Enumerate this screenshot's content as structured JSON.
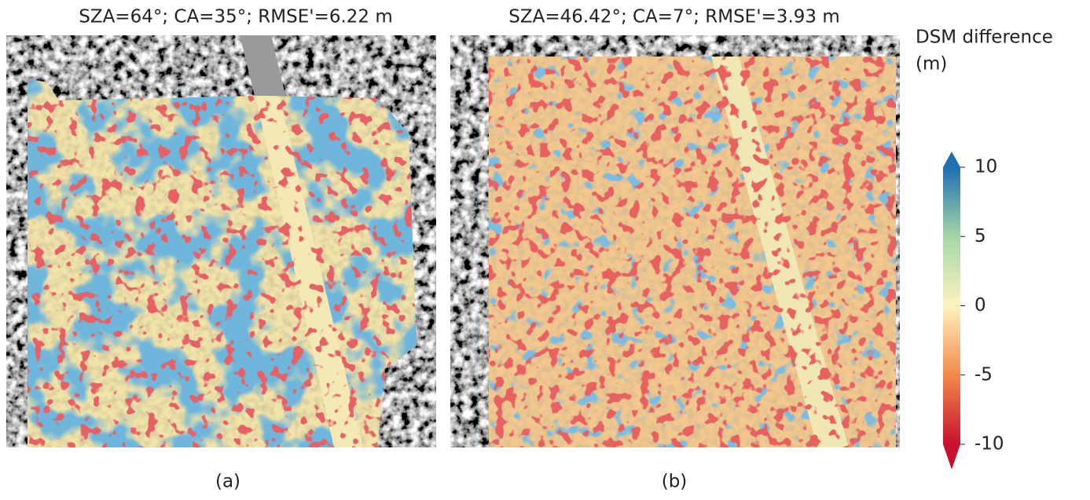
{
  "panels": [
    {
      "title": "SZA=64°; CA=35°; RMSE'=6.22 m",
      "caption": "(a)"
    },
    {
      "title": "SZA=46.42°; CA=7°; RMSE'=3.93 m",
      "caption": "(b)"
    }
  ],
  "colorbar": {
    "label": "DSM difference",
    "unit": "(m)",
    "lim": [
      -10,
      10
    ],
    "ticks": [
      10,
      5,
      0,
      -5,
      -10
    ]
  }
}
